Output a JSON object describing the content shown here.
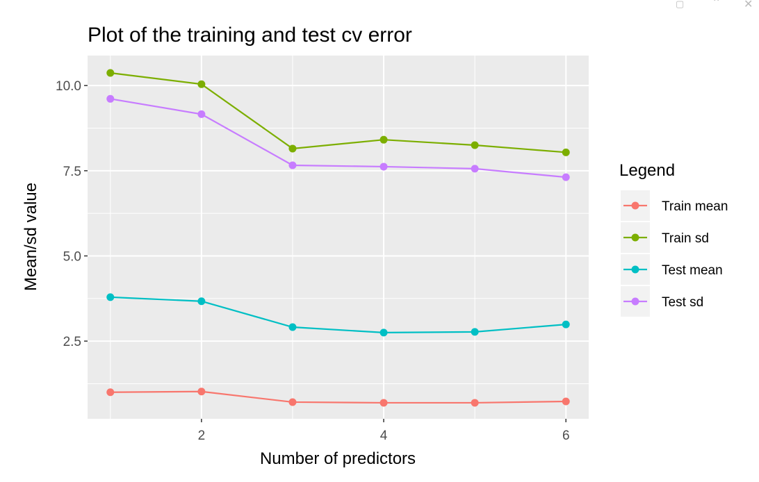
{
  "window": {
    "icons": [
      "popout-icon",
      "collapse-icon",
      "close-icon"
    ]
  },
  "chart_data": {
    "type": "line",
    "title": "Plot of the training and test cv error",
    "xlabel": "Number of predictors",
    "ylabel": "Mean/sd value",
    "x": [
      1,
      2,
      3,
      4,
      5,
      6
    ],
    "xlim": [
      0.75,
      6.25
    ],
    "ylim": [
      0.22,
      10.88
    ],
    "xticks": [
      2,
      4,
      6
    ],
    "xtick_labels": [
      "2",
      "4",
      "6"
    ],
    "yticks": [
      2.5,
      5.0,
      7.5,
      10.0
    ],
    "ytick_labels": [
      "2.5",
      "5.0",
      "7.5",
      "10.0"
    ],
    "grid": true,
    "legend": {
      "title": "Legend",
      "position": "right"
    },
    "series": [
      {
        "name": "Train mean",
        "color": "#F8766D",
        "values": [
          1.0,
          1.02,
          0.71,
          0.69,
          0.69,
          0.73
        ]
      },
      {
        "name": "Train sd",
        "color": "#7CAE00",
        "values": [
          10.37,
          10.04,
          8.15,
          8.41,
          8.25,
          8.04
        ]
      },
      {
        "name": "Test mean",
        "color": "#00BFC4",
        "values": [
          3.79,
          3.67,
          2.91,
          2.75,
          2.77,
          2.99
        ]
      },
      {
        "name": "Test sd",
        "color": "#C77CFF",
        "values": [
          9.61,
          9.16,
          7.66,
          7.62,
          7.56,
          7.31
        ]
      }
    ]
  }
}
